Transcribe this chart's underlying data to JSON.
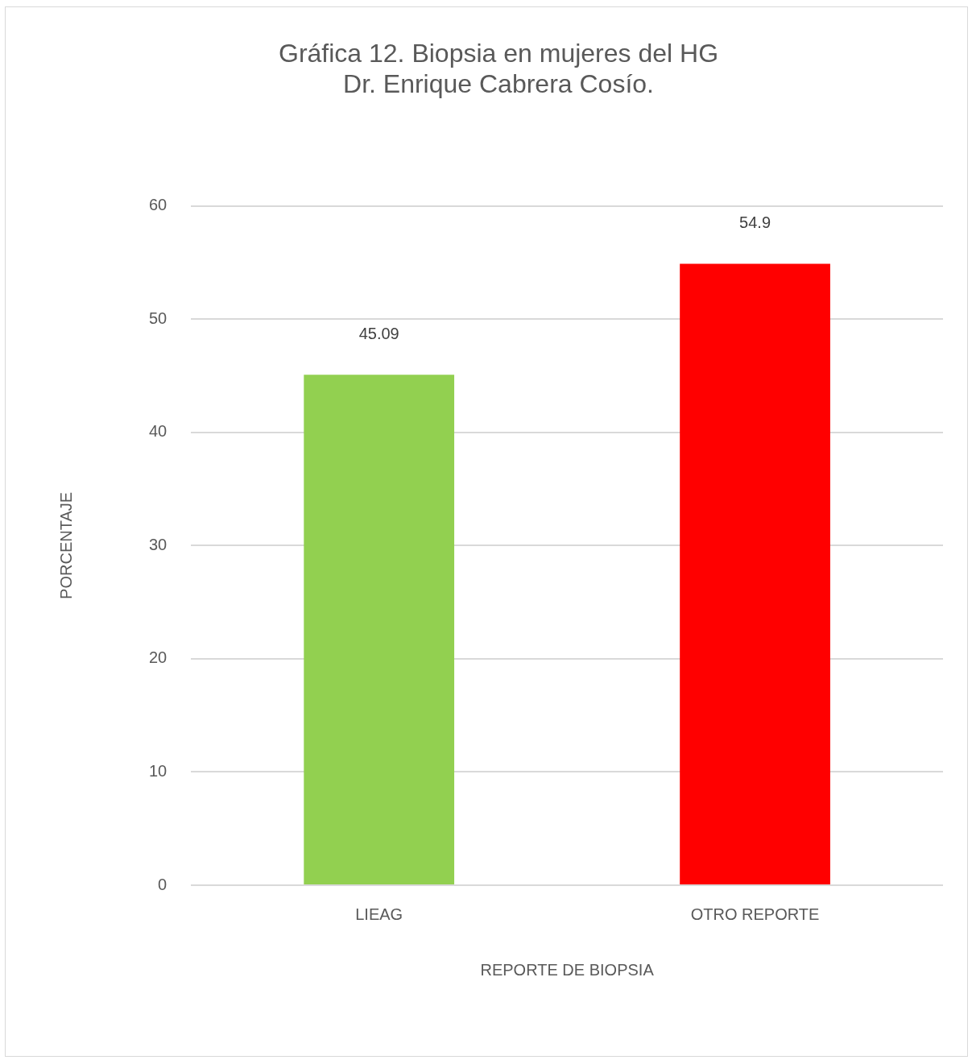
{
  "chart_data": {
    "type": "bar",
    "title": "Gráfica 12. Biopsia en mujeres del HG\nDr. Enrique Cabrera Cosío.",
    "xlabel": "REPORTE DE BIOPSIA",
    "ylabel": "PORCENTAJE",
    "categories": [
      "LIEAG",
      "OTRO REPORTE"
    ],
    "values": [
      45.09,
      54.9
    ],
    "colors": [
      "#92d050",
      "#ff0000"
    ],
    "ylim": [
      0,
      60
    ],
    "yticks": [
      0,
      10,
      20,
      30,
      40,
      50,
      60
    ],
    "grid": "y",
    "data_labels": true,
    "legend": false
  }
}
